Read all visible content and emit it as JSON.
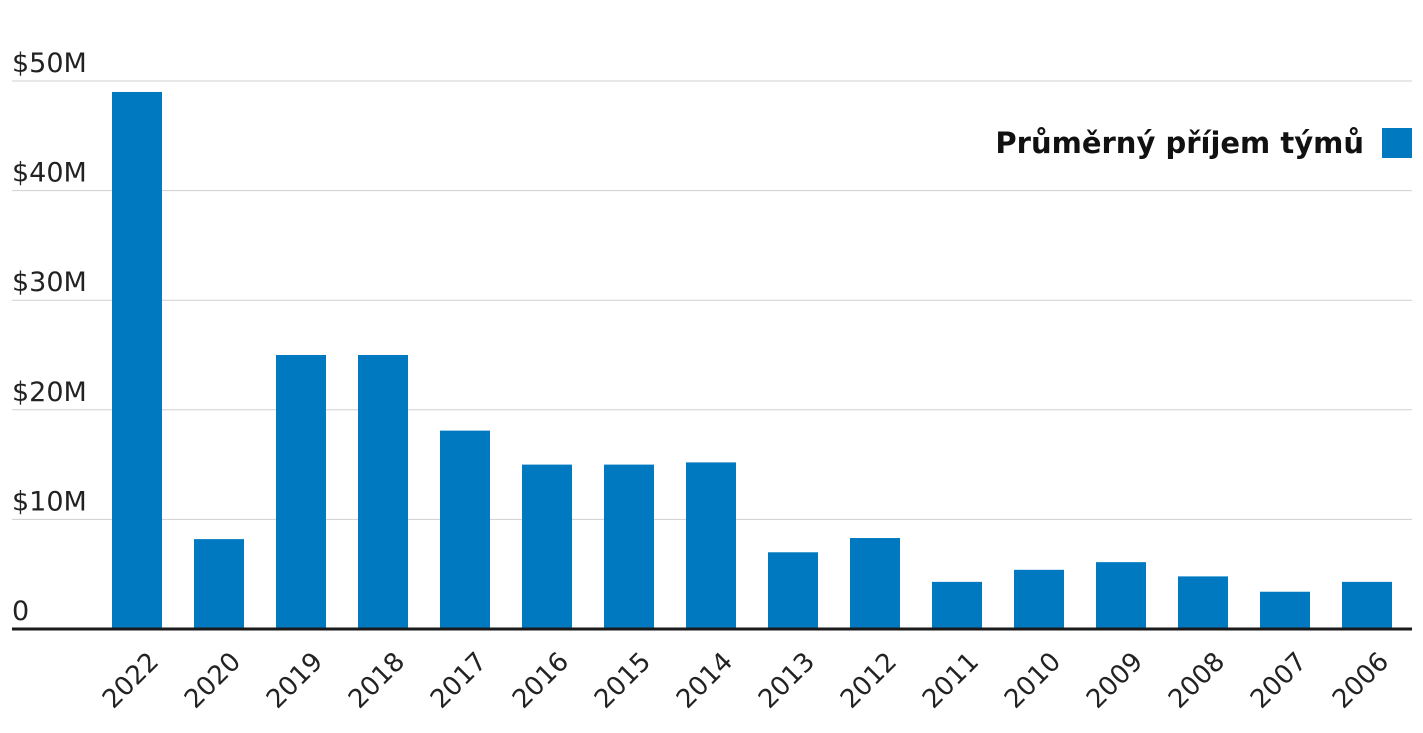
{
  "chart_data": {
    "type": "bar",
    "categories": [
      "2022",
      "2020",
      "2019",
      "2018",
      "2017",
      "2016",
      "2015",
      "2014",
      "2013",
      "2012",
      "2011",
      "2010",
      "2009",
      "2008",
      "2007",
      "2006"
    ],
    "series": [
      {
        "name": "Průměrný příjem týmů",
        "color": "#0079c1",
        "values": [
          49,
          8.2,
          25,
          25,
          18.1,
          15,
          15,
          15.2,
          7,
          8.3,
          4.3,
          5.4,
          6.1,
          4.8,
          3.4,
          4.3
        ]
      }
    ],
    "y_ticks": [
      {
        "value": 0,
        "label": "0"
      },
      {
        "value": 10,
        "label": "$10M"
      },
      {
        "value": 20,
        "label": "$20M"
      },
      {
        "value": 30,
        "label": "$30M"
      },
      {
        "value": 40,
        "label": "$40M"
      },
      {
        "value": 50,
        "label": "$50M"
      }
    ],
    "ylim": [
      0,
      50
    ],
    "unit": "millions USD",
    "grid": true,
    "legend_position": "top-right",
    "title": "",
    "xlabel": "",
    "ylabel": ""
  }
}
